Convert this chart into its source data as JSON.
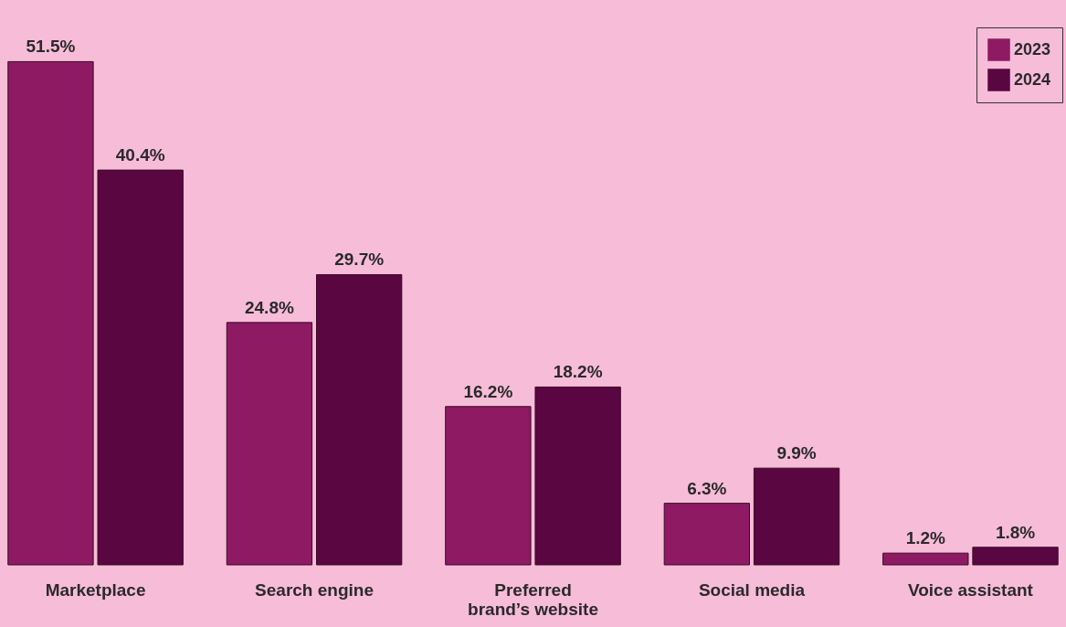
{
  "chart_data": {
    "type": "bar",
    "categories": [
      "Marketplace",
      "Search engine",
      "Preferred brand’s website",
      "Social media",
      "Voice assistant"
    ],
    "series": [
      {
        "name": "2023",
        "color": "#8e1a63",
        "values": [
          51.5,
          24.8,
          16.2,
          6.3,
          1.2
        ],
        "value_labels": [
          "51.5%",
          "24.8%",
          "16.2%",
          "6.3%",
          "1.2%"
        ]
      },
      {
        "name": "2024",
        "color": "#5a0640",
        "values": [
          40.4,
          29.7,
          18.2,
          9.9,
          1.8
        ],
        "value_labels": [
          "40.4%",
          "29.7%",
          "18.2%",
          "9.9%",
          "1.8%"
        ]
      }
    ],
    "legend": "top right",
    "grid": false,
    "tick_labels": "x"
  }
}
